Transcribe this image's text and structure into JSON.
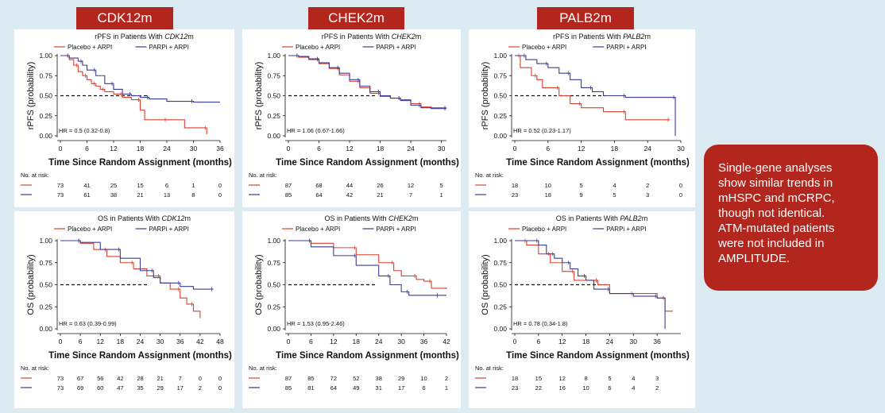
{
  "headers": [
    "CDK12m",
    "CHEK2m",
    "PALB2m"
  ],
  "note": "Single-gene analyses\nshow similar trends in\nmHSPC and mCRPC,\nthough not identical.\nATM-mutated patients\nwere not included in\nAMPLITUDE.",
  "colors": {
    "header_bg": "#b3261e",
    "page_bg": "#dcebf1",
    "placebo": "#d9412e",
    "parpi": "#3b3b9a"
  },
  "xlabel": "Time Since Random Assignment (months)",
  "risk_label": "No. at risk:",
  "legend": {
    "placebo": "Placebo + ARPI",
    "parpi": "PARPi + ARPI"
  },
  "chart_data": [
    {
      "type": "line",
      "title_prefix": "rPFS in Patients With ",
      "gene": "CDK12",
      "title_suffix": "m",
      "ylabel": "rPFS (probability)",
      "yticks": [
        "0.00",
        "0.25",
        "0.50",
        "0.75",
        "1.00"
      ],
      "xticks": [
        0,
        6,
        12,
        18,
        24,
        30,
        36
      ],
      "xlim": [
        0,
        36
      ],
      "ylim": [
        0,
        1
      ],
      "hr": "HR = 0.5 (0.32-0.8)",
      "series": [
        {
          "name": "Placebo + ARPI",
          "x": [
            0,
            2,
            3,
            4,
            5,
            6,
            7,
            8,
            9,
            10,
            12,
            14,
            16,
            18,
            19,
            24,
            28,
            33
          ],
          "y": [
            1.0,
            0.95,
            0.88,
            0.8,
            0.75,
            0.7,
            0.65,
            0.62,
            0.58,
            0.55,
            0.52,
            0.48,
            0.45,
            0.32,
            0.2,
            0.2,
            0.1,
            0.02
          ]
        },
        {
          "name": "PARPi + ARPI",
          "x": [
            0,
            2,
            4,
            5,
            6,
            8,
            10,
            12,
            14,
            16,
            18,
            20,
            24,
            30,
            36
          ],
          "y": [
            1.0,
            0.97,
            0.93,
            0.88,
            0.82,
            0.75,
            0.65,
            0.58,
            0.52,
            0.5,
            0.48,
            0.46,
            0.43,
            0.42,
            0.42
          ]
        }
      ],
      "risk_times": [
        0,
        6,
        12,
        18,
        24,
        30,
        36
      ],
      "risk": [
        [
          73,
          41,
          25,
          15,
          6,
          1,
          0
        ],
        [
          73,
          61,
          38,
          21,
          13,
          8,
          0
        ]
      ]
    },
    {
      "type": "line",
      "title_prefix": "rPFS in Patients With ",
      "gene": "CHEK2",
      "title_suffix": "m",
      "ylabel": "rPFS (probability)",
      "yticks": [
        "0.00",
        "0.25",
        "0.50",
        "0.75",
        "1.00"
      ],
      "xticks": [
        0,
        6,
        12,
        18,
        24,
        30
      ],
      "xlim": [
        0,
        31
      ],
      "ylim": [
        0,
        1
      ],
      "hr": "HR = 1.06 (0.67-1.66)",
      "series": [
        {
          "name": "Placebo + ARPI",
          "x": [
            0,
            2,
            4,
            6,
            8,
            10,
            12,
            14,
            16,
            18,
            20,
            22,
            24,
            26,
            28,
            31
          ],
          "y": [
            1.0,
            0.98,
            0.95,
            0.9,
            0.84,
            0.76,
            0.68,
            0.6,
            0.53,
            0.49,
            0.47,
            0.45,
            0.4,
            0.36,
            0.35,
            0.35
          ]
        },
        {
          "name": "PARPi + ARPI",
          "x": [
            0,
            2,
            4,
            6,
            8,
            10,
            12,
            14,
            16,
            18,
            20,
            22,
            24,
            26,
            28,
            31
          ],
          "y": [
            1.0,
            0.99,
            0.96,
            0.91,
            0.85,
            0.78,
            0.7,
            0.62,
            0.55,
            0.5,
            0.47,
            0.44,
            0.38,
            0.35,
            0.34,
            0.34
          ]
        }
      ],
      "risk_times": [
        0,
        6,
        12,
        18,
        24,
        30
      ],
      "risk": [
        [
          87,
          68,
          44,
          26,
          12,
          5
        ],
        [
          85,
          64,
          42,
          21,
          7,
          1
        ]
      ]
    },
    {
      "type": "line",
      "title_prefix": "rPFS in Patients With ",
      "gene": "PALB2",
      "title_suffix": "m",
      "ylabel": "rPFS (probability)",
      "yticks": [
        "0.00",
        "0.25",
        "0.50",
        "0.75",
        "1.00"
      ],
      "xticks": [
        0,
        6,
        12,
        18,
        24,
        30
      ],
      "xlim": [
        0,
        30
      ],
      "ylim": [
        0,
        1
      ],
      "hr": "HR = 0.52 (0.23-1.17)",
      "series": [
        {
          "name": "Placebo + ARPI",
          "x": [
            0,
            1,
            3,
            4,
            5,
            8,
            10,
            12,
            16,
            20,
            24,
            28
          ],
          "y": [
            1.0,
            0.85,
            0.75,
            0.7,
            0.6,
            0.5,
            0.4,
            0.35,
            0.3,
            0.2,
            0.2,
            0.2
          ]
        },
        {
          "name": "PARPi + ARPI",
          "x": [
            0,
            2,
            4,
            6,
            8,
            10,
            12,
            14,
            16,
            20,
            28,
            29
          ],
          "y": [
            1.0,
            0.95,
            0.9,
            0.85,
            0.78,
            0.7,
            0.6,
            0.55,
            0.5,
            0.48,
            0.48,
            0.0
          ]
        }
      ],
      "risk_times": [
        0,
        6,
        12,
        18,
        24,
        30
      ],
      "risk": [
        [
          18,
          10,
          5,
          4,
          2,
          0
        ],
        [
          23,
          18,
          9,
          5,
          3,
          0
        ]
      ]
    },
    {
      "type": "line",
      "title_prefix": "OS in Patients With ",
      "gene": "CDK12",
      "title_suffix": "m",
      "ylabel": "OS (probability)",
      "yticks": [
        "0.00",
        "0.25",
        "0.50",
        "0.75",
        "1.00"
      ],
      "xticks": [
        0,
        6,
        12,
        18,
        24,
        30,
        36,
        42,
        48
      ],
      "xlim": [
        0,
        48
      ],
      "ylim": [
        0,
        1
      ],
      "hr": "HR = 0.63 (0.39-0.99)",
      "series": [
        {
          "name": "Placebo + ARPI",
          "x": [
            0,
            6,
            10,
            14,
            18,
            22,
            26,
            30,
            33,
            36,
            38,
            40,
            42
          ],
          "y": [
            1.0,
            0.97,
            0.9,
            0.82,
            0.75,
            0.68,
            0.6,
            0.52,
            0.45,
            0.35,
            0.28,
            0.2,
            0.12
          ]
        },
        {
          "name": "PARPi + ARPI",
          "x": [
            0,
            6,
            12,
            18,
            24,
            28,
            30,
            36,
            40,
            46
          ],
          "y": [
            1.0,
            0.98,
            0.9,
            0.8,
            0.66,
            0.58,
            0.52,
            0.48,
            0.45,
            0.45
          ]
        }
      ],
      "risk_times": [
        0,
        6,
        12,
        18,
        24,
        30,
        36,
        42,
        48
      ],
      "risk": [
        [
          73,
          67,
          56,
          42,
          28,
          21,
          7,
          0,
          0
        ],
        [
          73,
          69,
          60,
          47,
          35,
          29,
          17,
          2,
          0
        ]
      ]
    },
    {
      "type": "line",
      "title_prefix": "OS in Patients With ",
      "gene": "CHEK2",
      "title_suffix": "m",
      "ylabel": "OS (probability)",
      "yticks": [
        "0.00",
        "0.25",
        "0.50",
        "0.75",
        "1.00"
      ],
      "xticks": [
        0,
        6,
        12,
        18,
        24,
        30,
        36,
        42
      ],
      "xlim": [
        0,
        42
      ],
      "ylim": [
        0,
        1
      ],
      "hr": "HR = 1.53 (0.95-2.46)",
      "series": [
        {
          "name": "Placebo + ARPI",
          "x": [
            0,
            6,
            12,
            18,
            24,
            28,
            30,
            34,
            36,
            38,
            42
          ],
          "y": [
            1.0,
            0.97,
            0.92,
            0.84,
            0.75,
            0.66,
            0.6,
            0.56,
            0.54,
            0.46,
            0.45
          ]
        },
        {
          "name": "PARPi + ARPI",
          "x": [
            0,
            6,
            12,
            18,
            24,
            27,
            30,
            32,
            36,
            40,
            42
          ],
          "y": [
            1.0,
            0.93,
            0.83,
            0.72,
            0.6,
            0.5,
            0.42,
            0.38,
            0.38,
            0.38,
            0.38
          ]
        }
      ],
      "risk_times": [
        0,
        6,
        12,
        18,
        24,
        30,
        36,
        42
      ],
      "risk": [
        [
          87,
          85,
          72,
          52,
          38,
          29,
          10,
          2
        ],
        [
          85,
          81,
          64,
          49,
          31,
          17,
          6,
          1
        ]
      ]
    },
    {
      "type": "line",
      "title_prefix": "OS in Patients With ",
      "gene": "PALB2",
      "title_suffix": "m",
      "ylabel": "OS (probability)",
      "yticks": [
        "0.00",
        "0.25",
        "0.50",
        "0.75",
        "1.00"
      ],
      "xticks": [
        0,
        6,
        12,
        18,
        24,
        30,
        36
      ],
      "xlim": [
        0,
        42
      ],
      "ylim": [
        0,
        1
      ],
      "hr": "HR = 0.78 (0.34-1.8)",
      "series": [
        {
          "name": "Placebo + ARPI",
          "x": [
            0,
            3,
            6,
            9,
            12,
            15,
            18,
            21,
            24,
            30,
            36,
            38,
            40
          ],
          "y": [
            1.0,
            0.95,
            0.85,
            0.75,
            0.65,
            0.55,
            0.55,
            0.5,
            0.4,
            0.4,
            0.35,
            0.2,
            0.2
          ]
        },
        {
          "name": "PARPi + ARPI",
          "x": [
            0,
            6,
            8,
            10,
            12,
            14,
            16,
            18,
            20,
            24,
            30,
            36,
            38
          ],
          "y": [
            1.0,
            0.95,
            0.85,
            0.8,
            0.75,
            0.68,
            0.6,
            0.55,
            0.45,
            0.4,
            0.37,
            0.35,
            0.0
          ]
        }
      ],
      "risk_times": [
        0,
        6,
        12,
        18,
        24,
        30,
        36
      ],
      "risk": [
        [
          18,
          15,
          12,
          8,
          5,
          4,
          3
        ],
        [
          23,
          22,
          16,
          10,
          6,
          4,
          2
        ]
      ]
    }
  ]
}
